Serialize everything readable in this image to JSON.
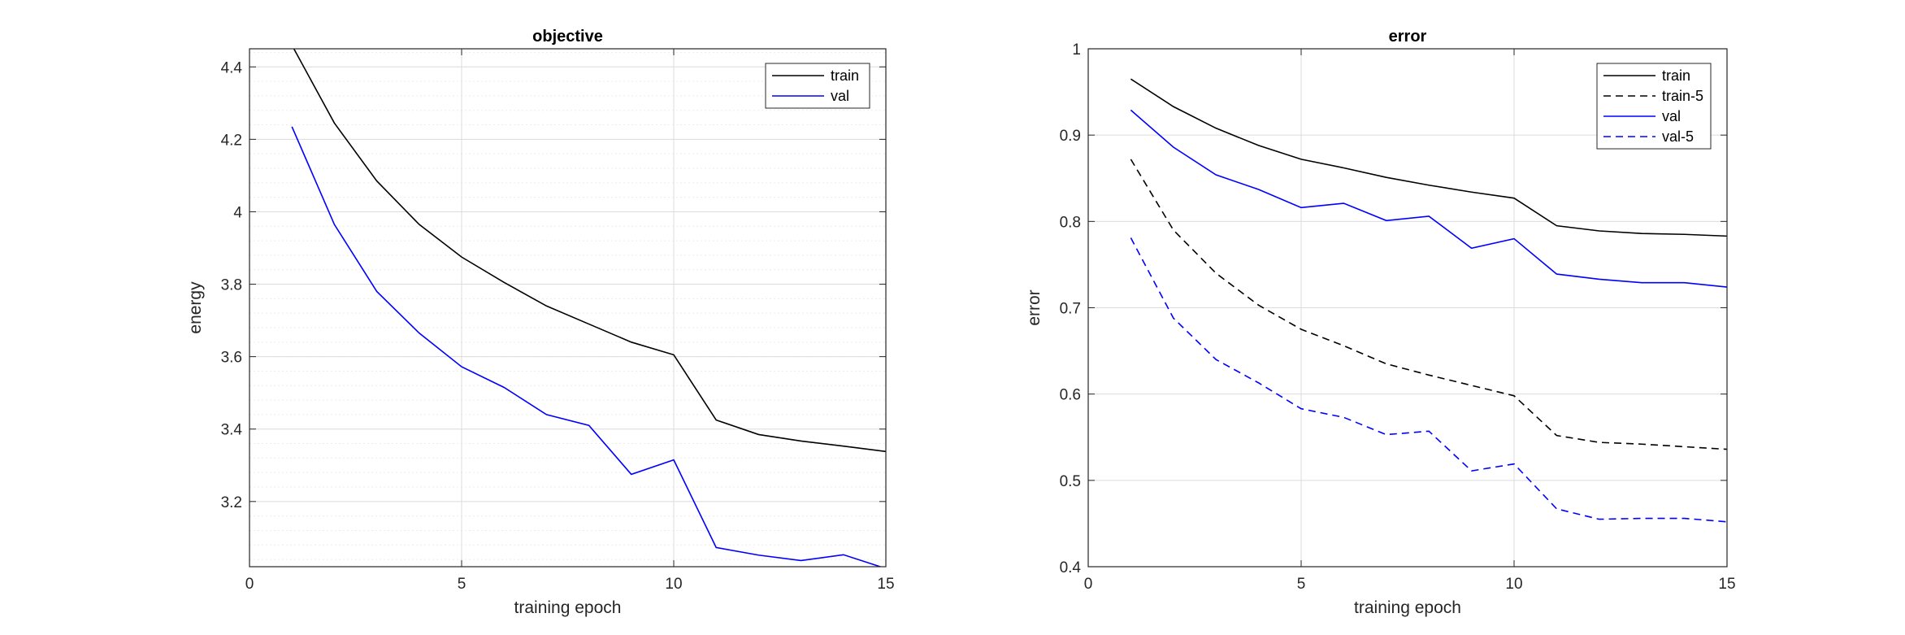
{
  "chart_data": [
    {
      "type": "line",
      "title": "objective",
      "xlabel": "training epoch",
      "ylabel": "energy",
      "xlim": [
        0,
        15
      ],
      "ylim": [
        3.02,
        4.45
      ],
      "xticks": [
        0,
        5,
        10,
        15
      ],
      "yticks": [
        3.2,
        3.4,
        3.6,
        3.8,
        4.0,
        4.2,
        4.4
      ],
      "ytick_labels": [
        "3.2",
        "3.4",
        "3.6",
        "3.8",
        "4",
        "4.2",
        "4.4"
      ],
      "grid": true,
      "minor_grid_y": true,
      "legend_position": "top-right",
      "series": [
        {
          "name": "train",
          "color": "#000000",
          "dash": "solid",
          "x": [
            1,
            2,
            3,
            4,
            5,
            6,
            7,
            8,
            9,
            10,
            11,
            12,
            13,
            14,
            15
          ],
          "values": [
            4.46,
            4.245,
            4.085,
            3.965,
            3.875,
            3.805,
            3.74,
            3.69,
            3.64,
            3.605,
            3.425,
            3.385,
            3.367,
            3.353,
            3.338
          ]
        },
        {
          "name": "val",
          "color": "#0000ff",
          "dash": "solid",
          "x": [
            1,
            2,
            3,
            4,
            5,
            6,
            7,
            8,
            9,
            10,
            11,
            12,
            13,
            14,
            15
          ],
          "values": [
            4.235,
            3.965,
            3.78,
            3.665,
            3.572,
            3.515,
            3.44,
            3.41,
            3.275,
            3.315,
            3.073,
            3.052,
            3.037,
            3.053,
            3.015
          ]
        }
      ]
    },
    {
      "type": "line",
      "title": "error",
      "xlabel": "training epoch",
      "ylabel": "error",
      "xlim": [
        0,
        15
      ],
      "ylim": [
        0.4,
        1.0
      ],
      "xticks": [
        0,
        5,
        10,
        15
      ],
      "yticks": [
        0.4,
        0.5,
        0.6,
        0.7,
        0.8,
        0.9,
        1.0
      ],
      "ytick_labels": [
        "0.4",
        "0.5",
        "0.6",
        "0.7",
        "0.8",
        "0.9",
        "1"
      ],
      "grid": true,
      "minor_grid_y": false,
      "legend_position": "top-right",
      "series": [
        {
          "name": "train",
          "color": "#000000",
          "dash": "solid",
          "x": [
            1,
            2,
            3,
            4,
            5,
            6,
            7,
            8,
            9,
            10,
            11,
            12,
            13,
            14,
            15
          ],
          "values": [
            0.965,
            0.933,
            0.908,
            0.888,
            0.872,
            0.862,
            0.851,
            0.842,
            0.834,
            0.827,
            0.795,
            0.789,
            0.786,
            0.785,
            0.783
          ]
        },
        {
          "name": "train-5",
          "color": "#000000",
          "dash": "dashed",
          "x": [
            1,
            2,
            3,
            4,
            5,
            6,
            7,
            8,
            9,
            10,
            11,
            12,
            13,
            14,
            15
          ],
          "values": [
            0.872,
            0.79,
            0.74,
            0.703,
            0.675,
            0.656,
            0.635,
            0.622,
            0.61,
            0.598,
            0.552,
            0.544,
            0.542,
            0.539,
            0.536
          ]
        },
        {
          "name": "val",
          "color": "#0000ff",
          "dash": "solid",
          "x": [
            1,
            2,
            3,
            4,
            5,
            6,
            7,
            8,
            9,
            10,
            11,
            12,
            13,
            14,
            15
          ],
          "values": [
            0.929,
            0.886,
            0.854,
            0.837,
            0.816,
            0.821,
            0.801,
            0.806,
            0.769,
            0.78,
            0.739,
            0.733,
            0.729,
            0.729,
            0.724
          ]
        },
        {
          "name": "val-5",
          "color": "#0000ff",
          "dash": "dashed",
          "x": [
            1,
            2,
            3,
            4,
            5,
            6,
            7,
            8,
            9,
            10,
            11,
            12,
            13,
            14,
            15
          ],
          "values": [
            0.781,
            0.688,
            0.64,
            0.613,
            0.583,
            0.573,
            0.553,
            0.557,
            0.511,
            0.519,
            0.467,
            0.455,
            0.456,
            0.456,
            0.452
          ]
        }
      ]
    }
  ]
}
